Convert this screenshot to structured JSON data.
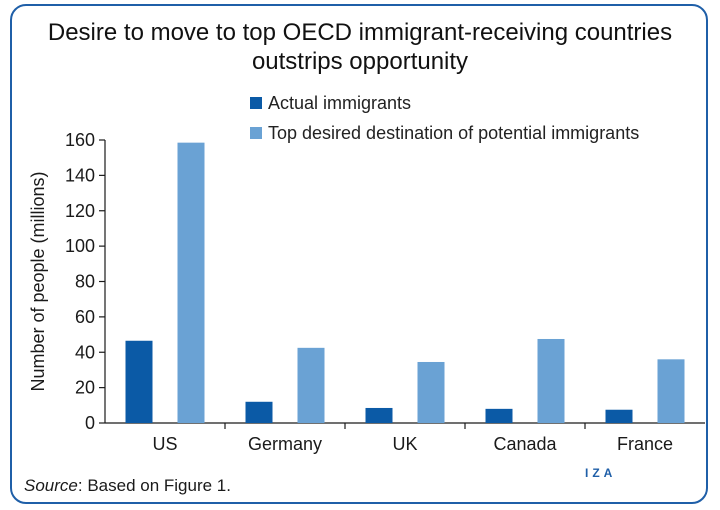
{
  "title": "Desire to move to top OECD immigrant-receiving countries outstrips opportunity",
  "source": {
    "prefix": "Source",
    "text": ": Based on Figure 1."
  },
  "logo": "IZA",
  "colors": {
    "frame": "#1f5fa8",
    "actual": "#0b5aa6",
    "desired": "#6aa2d4"
  },
  "chart_data": {
    "type": "bar",
    "categories": [
      "US",
      "Germany",
      "UK",
      "Canada",
      "France"
    ],
    "series": [
      {
        "name": "Actual immigrants",
        "color": "#0b5aa6",
        "values": [
          46.5,
          12,
          8.5,
          8,
          7.5
        ]
      },
      {
        "name": "Top desired destination of potential immigrants",
        "color": "#6aa2d4",
        "values": [
          158.5,
          42.5,
          34.5,
          47.5,
          36
        ]
      }
    ],
    "ylabel": "Number of people (millions)",
    "xlabel": "",
    "ylim": [
      0,
      160
    ],
    "yticks": [
      0,
      20,
      40,
      60,
      80,
      100,
      120,
      140,
      160
    ],
    "grid": false,
    "legend_position": "top-right"
  }
}
